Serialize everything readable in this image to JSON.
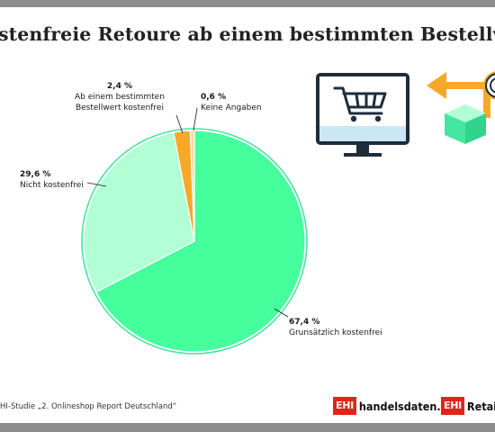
{
  "title": "stenfreie Retoure ab einem bestimmten Bestellwert",
  "source": "HI-Studie „2. Onlineshop Report Deutschland“",
  "brands": [
    {
      "box": "EHI",
      "text": "handelsdaten.de"
    },
    {
      "box": "EHI",
      "text": "Retail I"
    }
  ],
  "icons": [
    "shopping-cart-monitor-icon",
    "arrow-left-icon",
    "coin-icon",
    "package-box-icon"
  ],
  "colors": {
    "green": "#45ff9d",
    "light_green": "#b2ffd6",
    "orange": "#f7a829",
    "pale_orange": "#fbd89c",
    "ring": "#45e6a0",
    "dark": "#1d2d3b",
    "screen_blue": "#cbe6f5",
    "red": "#e1251b"
  },
  "chart_data": {
    "type": "pie",
    "title": "stenfreie Retoure ab einem bestimmten Bestellwert",
    "slices": [
      {
        "label": "Grunsätzlich kostenfrei",
        "value": 67.4,
        "display": "67,4 %",
        "color": "#45ff9d"
      },
      {
        "label": "Nicht kostenfrei",
        "value": 29.6,
        "display": "29,6 %",
        "color": "#b2ffd6"
      },
      {
        "label": "Ab einem bestimmten Bestellwert kostenfrei",
        "display": "2,4 %",
        "value": 2.4,
        "color": "#f7a829",
        "label_lines": [
          "Ab einem bestimmten",
          "Bestellwert kostenfrei"
        ]
      },
      {
        "label": "Keine Angaben",
        "value": 0.6,
        "display": "0,6 %",
        "color": "#fbd89c"
      }
    ],
    "units": "%"
  }
}
